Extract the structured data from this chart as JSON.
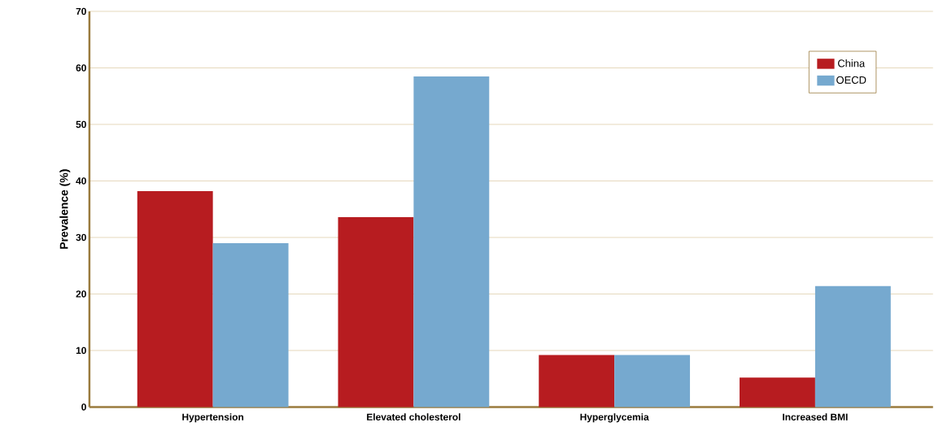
{
  "chart_data": {
    "type": "bar",
    "ylabel": "Prevalence (%)",
    "categories": [
      "Hypertension",
      "Elevated cholesterol",
      "Hyperglycemia",
      "Increased BMI"
    ],
    "series": [
      {
        "name": "China",
        "color": "#b71c20",
        "values": [
          38.2,
          33.6,
          9.2,
          5.2
        ]
      },
      {
        "name": "OECD",
        "color": "#76a9cf",
        "values": [
          29.0,
          58.5,
          9.2,
          21.4
        ]
      }
    ],
    "ylim": [
      0,
      70
    ],
    "yticks": [
      0,
      10,
      20,
      30,
      40,
      50,
      60,
      70
    ],
    "grid": "y",
    "legend": "top right"
  }
}
